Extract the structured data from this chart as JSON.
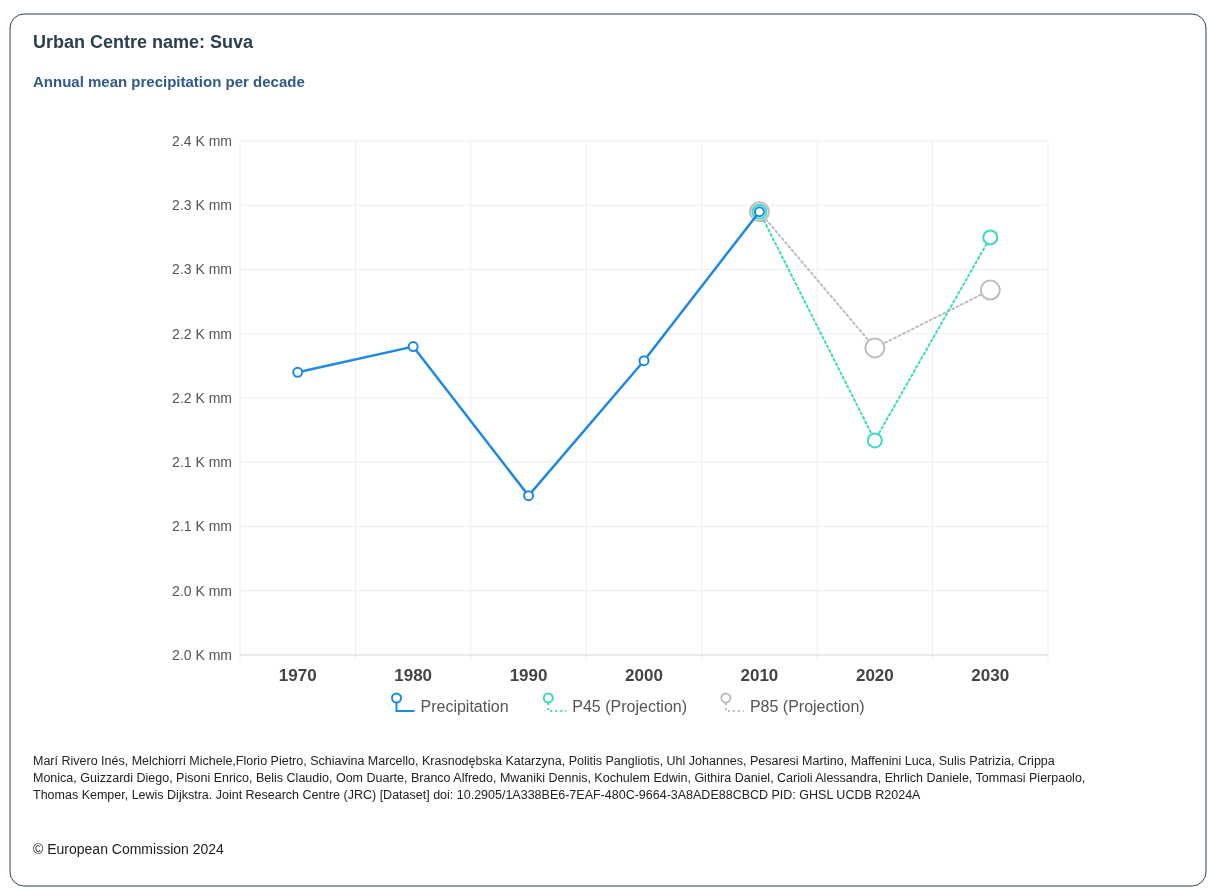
{
  "chart_data": {
    "type": "line",
    "title": "Urban Centre name: Suva",
    "subtitle": "Annual mean precipitation per decade",
    "categories": [
      "1970",
      "1980",
      "1990",
      "2000",
      "2010",
      "2020",
      "2030"
    ],
    "series": [
      {
        "name": "Precipitation",
        "color": "#1e88e5",
        "line_style": "solid",
        "values": [
          2220,
          2240,
          2124,
          2229,
          2345,
          null,
          null
        ]
      },
      {
        "name": "P45 (Projection)",
        "color": "#3dd9c1",
        "line_style": "dotted",
        "values": [
          null,
          null,
          null,
          null,
          2345,
          2167,
          2325
        ]
      },
      {
        "name": "P85 (Projection)",
        "color": "#bdbdbd",
        "line_style": "dotted",
        "values": [
          null,
          null,
          null,
          null,
          2345,
          2239,
          2284
        ]
      }
    ],
    "ylim": [
      2000,
      2400
    ],
    "yticks": [
      {
        "value": 2000,
        "label": "2.0 K mm"
      },
      {
        "value": 2050,
        "label": "2.0 K mm"
      },
      {
        "value": 2100,
        "label": "2.1 K mm"
      },
      {
        "value": 2150,
        "label": "2.1 K mm"
      },
      {
        "value": 2200,
        "label": "2.2 K mm"
      },
      {
        "value": 2250,
        "label": "2.2 K mm"
      },
      {
        "value": 2300,
        "label": "2.3 K mm"
      },
      {
        "value": 2350,
        "label": "2.3 K mm"
      },
      {
        "value": 2400,
        "label": "2.4 K mm"
      }
    ],
    "grid": true,
    "legend": "bottom",
    "marker": "circle",
    "annotations": [
      "Marí Rivero Inés, Melchiorri Michele,Florio Pietro, Schiavina Marcello, Krasnodębska Katarzyna, Politis Pangliotis, Uhl Johannes, Pesaresi Martino, Maffenini Luca, Sulis Patrizia, Crippa Monica, Guizzardi Diego, Pisoni Enrico, Belis Claudio, Oom Duarte, Branco Alfredo, Mwaniki Dennis, Kochulem Edwin, Githira Daniel, Carioli Alessandra, Ehrlich Daniele, Tommasi Pierpaolo, Thomas Kemper, Lewis Dijkstra. Joint Research Centre (JRC) [Dataset] doi: 10.2905/1A338BE6-7EAF-480C-9664-3A8ADE88CBCD PID: GHSL UCDB R2024A",
      "© European Commission 2024"
    ]
  }
}
